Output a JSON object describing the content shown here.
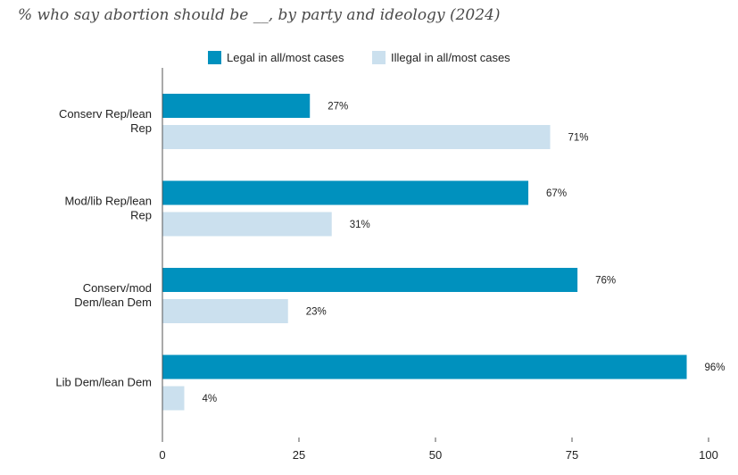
{
  "chart_data": {
    "type": "bar",
    "orientation": "horizontal",
    "title": "% who say abortion should be __, by party and ideology (2024)",
    "categories": [
      [
        "Conserv Rep/lean",
        "Rep"
      ],
      [
        "Mod/lib Rep/lean",
        "Rep"
      ],
      [
        "Conserv/mod",
        "Dem/lean Dem"
      ],
      [
        "Lib Dem/lean Dem"
      ]
    ],
    "series": [
      {
        "name": "Legal in all/most cases",
        "color": "#0091be",
        "values": [
          27,
          67,
          76,
          96
        ],
        "labels": [
          "27%",
          "67%",
          "76%",
          "96%"
        ]
      },
      {
        "name": "Illegal in all/most cases",
        "color": "#cbe0ee",
        "values": [
          71,
          31,
          23,
          4
        ],
        "labels": [
          "71%",
          "31%",
          "23%",
          "4%"
        ]
      }
    ],
    "xlim": [
      0,
      100
    ],
    "xticks": [
      0,
      25,
      50,
      75,
      100
    ],
    "xtick_labels": [
      "0",
      "25",
      "50",
      "75",
      "100"
    ],
    "grid": false,
    "legend_position": "top"
  }
}
